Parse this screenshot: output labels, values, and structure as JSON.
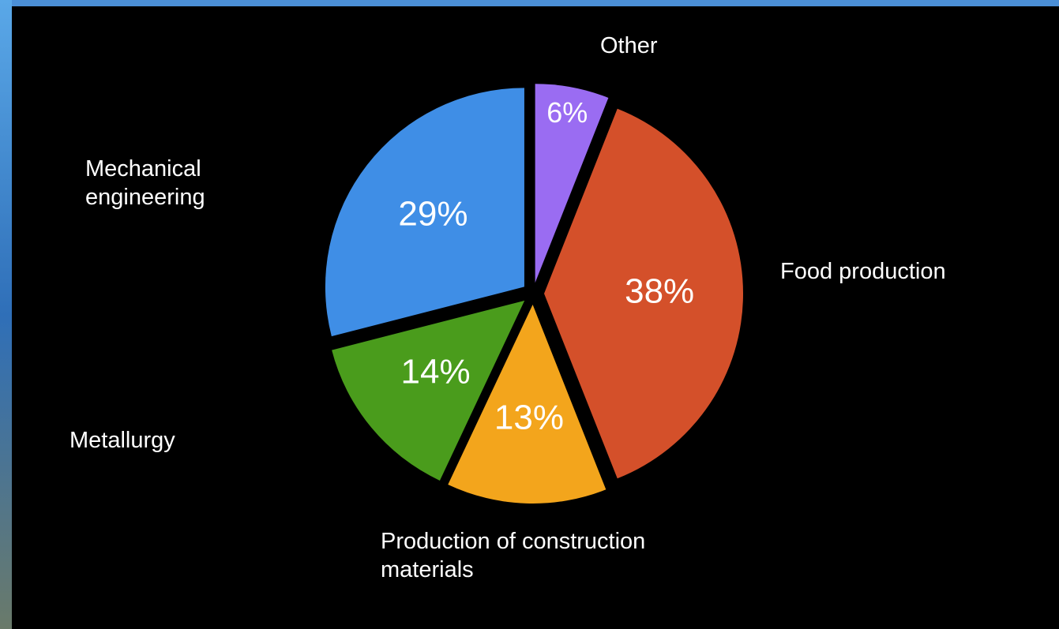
{
  "chart_data": {
    "type": "pie",
    "categories": [
      "Other",
      "Food production",
      "Production of construction materials",
      "Metallurgy",
      "Mechanical engineering"
    ],
    "values": [
      6,
      38,
      13,
      14,
      29
    ],
    "value_labels": [
      "6%",
      "38%",
      "13%",
      "14%",
      "29%"
    ],
    "colors": [
      "#9a6cf2",
      "#d4502a",
      "#f3a51c",
      "#4a9c1c",
      "#3f8ee6"
    ]
  }
}
